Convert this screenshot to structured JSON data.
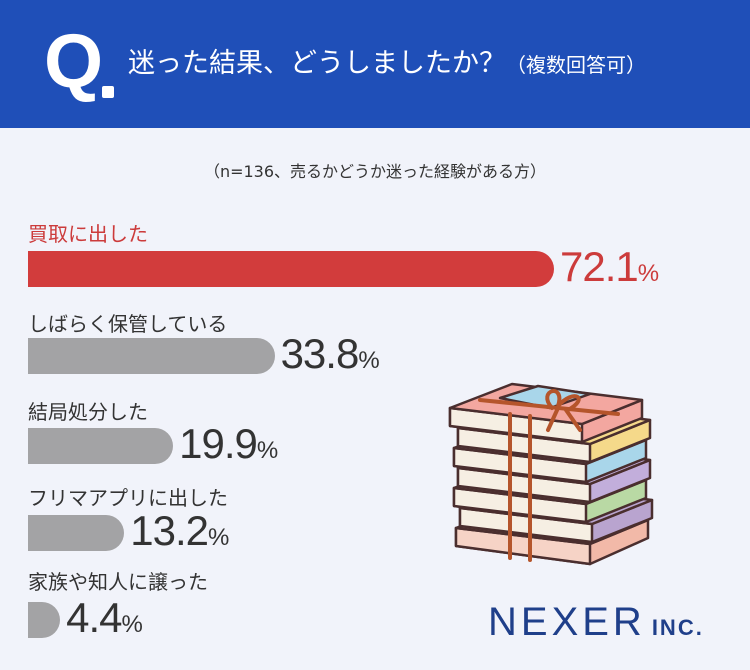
{
  "header": {
    "q_mark": "Q",
    "question": "迷った結果、どうしましたか？",
    "question_suffix": "（複数回答可）",
    "bg_color": "#1f4fb8"
  },
  "note": "（n=136、売るかどうか迷った経験がある方）",
  "chart_data": {
    "type": "bar",
    "orientation": "horizontal",
    "unit": "%",
    "categories": [
      "買取に出した",
      "しばらく保管している",
      "結局処分した",
      "フリマアプリに出した",
      "家族や知人に譲った"
    ],
    "values": [
      72.1,
      33.8,
      19.9,
      13.2,
      4.4
    ],
    "value_labels": [
      "72.1",
      "33.8",
      "19.9",
      "13.2",
      "4.4"
    ],
    "highlight_index": 0,
    "colors": {
      "highlight": "#d23c3c",
      "normal": "#a3a3a5"
    }
  },
  "illustration": {
    "icon": "stack-of-books-icon"
  },
  "brand": {
    "name": "NEXER",
    "suffix": "INC."
  }
}
